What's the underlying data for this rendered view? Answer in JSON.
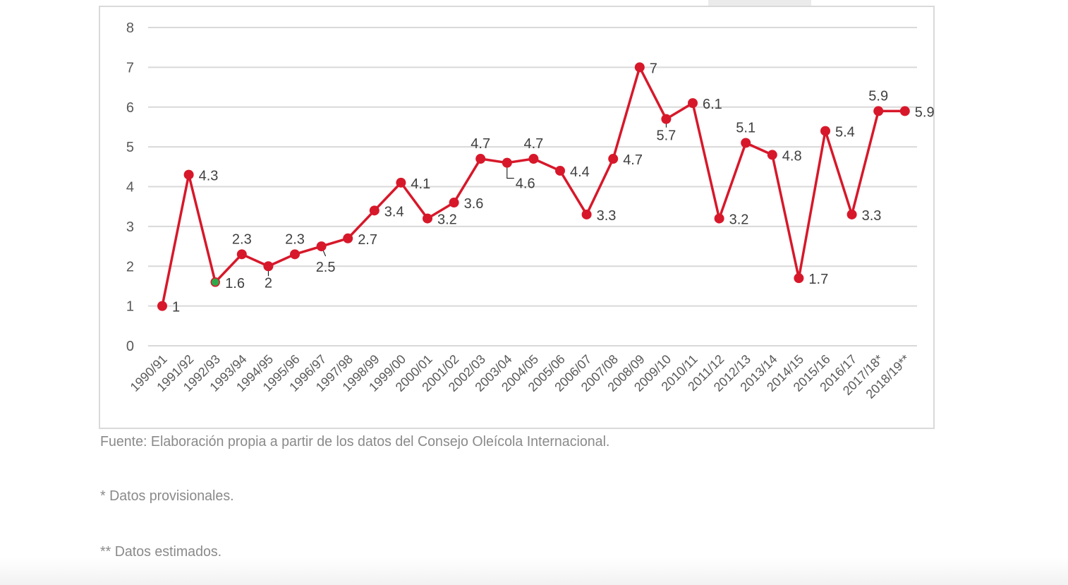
{
  "chart_data": {
    "type": "line",
    "title": "",
    "xlabel": "",
    "ylabel": "",
    "ylim": [
      0,
      8
    ],
    "yticks": [
      "0",
      "1",
      "2",
      "3",
      "4",
      "5",
      "6",
      "7",
      "8"
    ],
    "grid": true,
    "legend": "none",
    "categories": [
      "1990/91",
      "1991/92",
      "1992/93",
      "1993/94",
      "1994/95",
      "1995/96",
      "1996/97",
      "1997/98",
      "1998/99",
      "1999/00",
      "2000/01",
      "2001/02",
      "2002/03",
      "2003/04",
      "2004/05",
      "2005/06",
      "2006/07",
      "2007/08",
      "2008/09",
      "2009/10",
      "2010/11",
      "2011/12",
      "2012/13",
      "2013/14",
      "2014/15",
      "2015/16",
      "2016/17",
      "2017/18*",
      "2018/19**"
    ],
    "series": [
      {
        "name": "",
        "color": "#d7182a",
        "highlight_color": "#2ea84a",
        "highlight_index": 2,
        "values": [
          1,
          4.3,
          1.6,
          2.3,
          2,
          2.3,
          2.5,
          2.7,
          3.4,
          4.1,
          3.2,
          3.6,
          4.7,
          4.6,
          4.7,
          4.4,
          3.3,
          4.7,
          7,
          5.7,
          6.1,
          3.2,
          5.1,
          4.8,
          1.7,
          5.4,
          3.3,
          5.9,
          5.9
        ],
        "labels": [
          "1",
          "4.3",
          "1.6",
          "2.3",
          "2",
          "2.3",
          "2.5",
          "2.7",
          "3.4",
          "4.1",
          "3.2",
          "3.6",
          "4.7",
          "4.6",
          "4.7",
          "4.4",
          "3.3",
          "4.7",
          "7",
          "5.7",
          "6.1",
          "3.2",
          "5.1",
          "4.8",
          "1.7",
          "5.4",
          "3.3",
          "5.9",
          "5.9"
        ]
      }
    ]
  },
  "notes": {
    "source": "Fuente: Elaboración propia a partir de los datos del Consejo Oleícola Internacional.",
    "provisional": "* Datos provisionales.",
    "estimated": "** Datos estimados."
  },
  "colors": {
    "line": "#d7182a",
    "highlight": "#2ea84a",
    "grid": "#d9d9d9",
    "text": "#404040",
    "note": "#8a8a8a"
  }
}
